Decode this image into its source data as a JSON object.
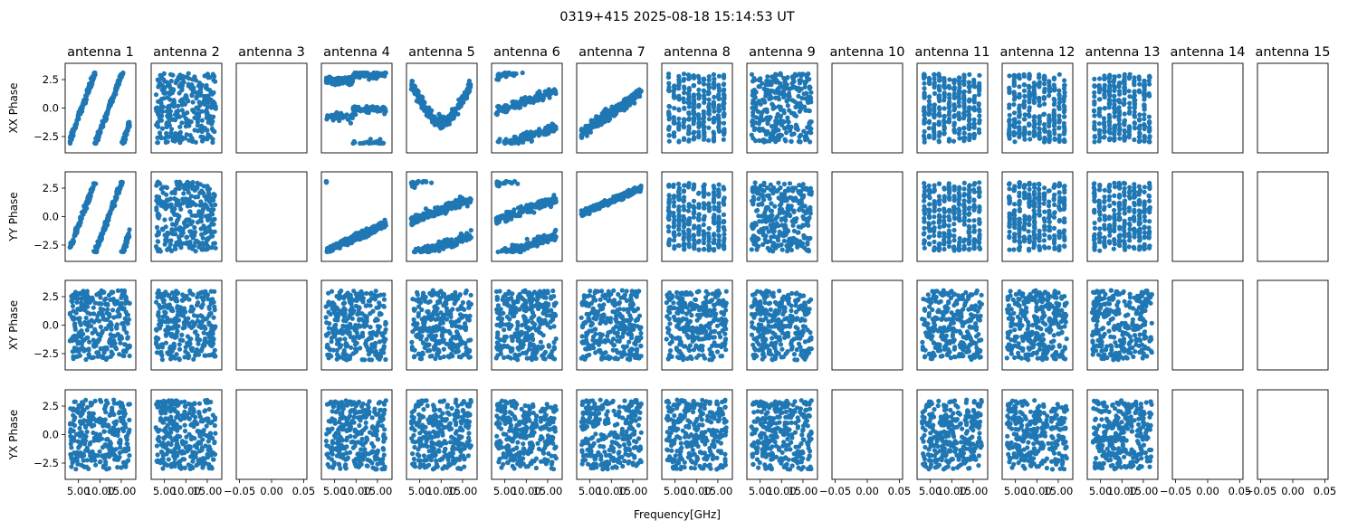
{
  "chart_data": {
    "type": "scatter",
    "title": "0319+415 2025-08-18 15:14:53 UT",
    "xlabel": "Frequency[GHz]",
    "marker_color": "#1f77b4",
    "antennas": [
      "antenna 1",
      "antenna 2",
      "antenna 3",
      "antenna 4",
      "antenna 5",
      "antenna 6",
      "antenna 7",
      "antenna 8",
      "antenna 9",
      "antenna 10",
      "antenna 11",
      "antenna 12",
      "antenna 13",
      "antenna 14",
      "antenna 15"
    ],
    "rows": [
      "XX Phase",
      "YY Phase",
      "XY Phase",
      "YX Phase"
    ],
    "ylim": [
      -3.93,
      3.93
    ],
    "yticks": [
      -2.5,
      0.0,
      2.5
    ],
    "ytick_labels": [
      "−2.5",
      "0.0",
      "2.5"
    ],
    "data_xlim": [
      1.9,
      18.4
    ],
    "data_xticks": [
      5,
      10,
      15
    ],
    "data_xtick_labels": [
      "5.00",
      "10.00",
      "15.00"
    ],
    "empty_xlim": [
      -0.055,
      0.055
    ],
    "empty_xticks": [
      -0.05,
      0,
      0.05
    ],
    "empty_xtick_labels": [
      "−0.05",
      "0.00",
      "0.05"
    ],
    "empty_antennas": [
      3,
      10,
      14,
      15
    ],
    "freq_range_ghz": [
      3.0,
      17.0
    ],
    "points_per_panel": 300,
    "patterns": {
      "XX Phase": {
        "1": "wrap",
        "2": "noise",
        "4": "top-bottom-band",
        "5": "S-band",
        "6": "bands",
        "7": "ramp",
        "8": "stripes",
        "9": "noise",
        "11": "stripes",
        "12": "stripes",
        "13": "stripes"
      },
      "YY Phase": {
        "1": "wrap",
        "2": "noise",
        "4": "ramp-wrap",
        "5": "bands",
        "6": "bands",
        "7": "ramp-up",
        "8": "stripes",
        "9": "noise",
        "11": "stripes",
        "12": "stripes",
        "13": "stripes"
      },
      "XY Phase": {
        "1": "noise",
        "2": "noise",
        "4": "noise",
        "5": "noise",
        "6": "noise",
        "7": "noise",
        "8": "noise",
        "9": "noise",
        "11": "noise",
        "12": "noise",
        "13": "noise"
      },
      "YX Phase": {
        "1": "noise",
        "2": "noise",
        "4": "noise",
        "5": "noise",
        "6": "noise",
        "7": "noise",
        "8": "noise",
        "9": "noise",
        "11": "noise",
        "12": "noise",
        "13": "noise"
      }
    }
  }
}
